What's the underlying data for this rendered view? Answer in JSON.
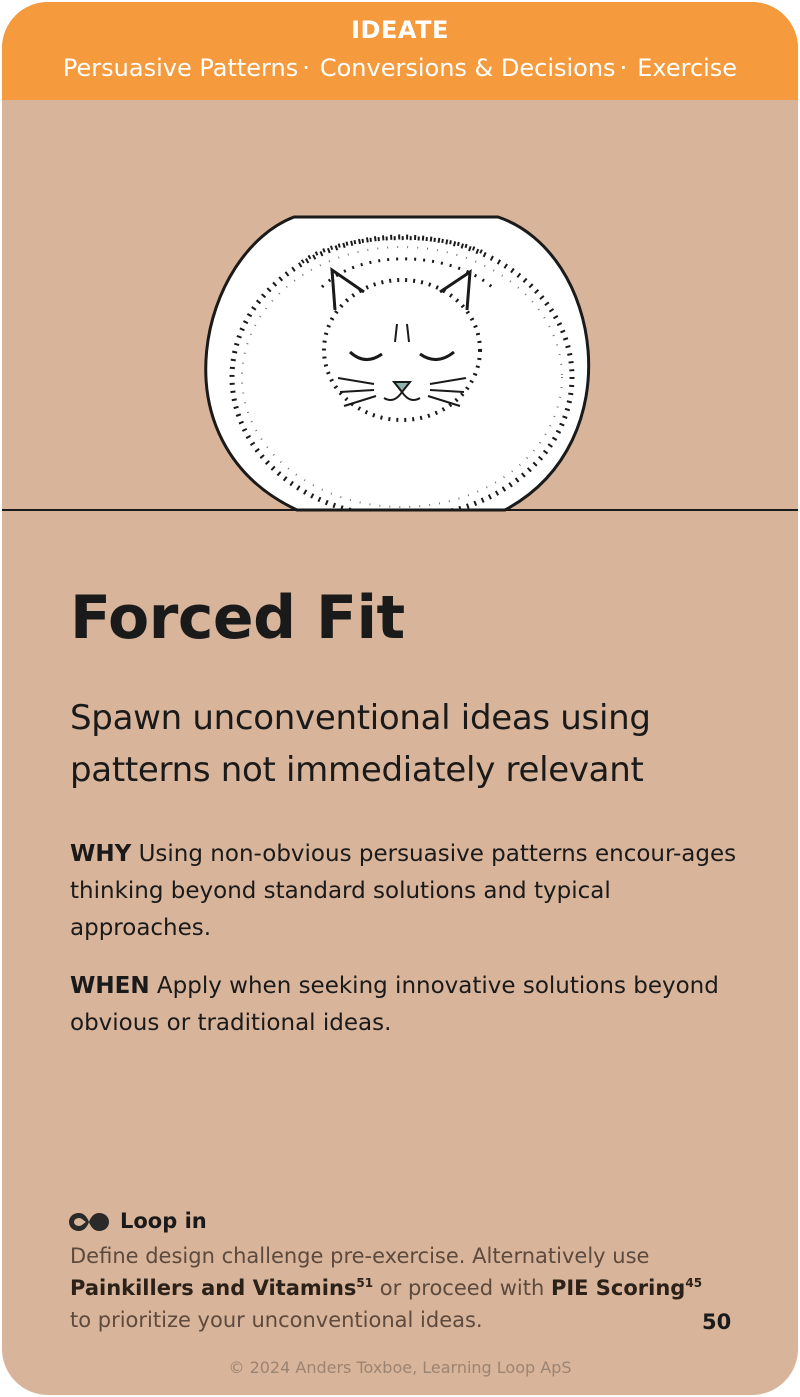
{
  "header": {
    "category": "IDEATE",
    "breadcrumb": [
      "Persuasive Patterns",
      "Conversions & Decisions",
      "Exercise"
    ],
    "separator": "·"
  },
  "illustration": {
    "icon": "cat-in-jar-icon"
  },
  "card": {
    "title": "Forced Fit",
    "subtitle": "Spawn unconventional ideas using patterns not immediately relevant",
    "why": {
      "label": "WHY",
      "text": "Using non-obvious persuasive patterns encour-ages thinking beyond standard solutions and typical approaches."
    },
    "when": {
      "label": "WHEN",
      "text": "Apply when seeking innovative solutions beyond obvious or traditional ideas."
    }
  },
  "loop_in": {
    "icon": "loop-icon",
    "heading": "Loop in",
    "text_before": "Define design challenge pre-exercise. Alternatively use",
    "ref1_name": "Painkillers and Vitamins",
    "ref1_num": "51",
    "text_middle": "or proceed with",
    "ref2_name": "PIE Scoring",
    "ref2_num": "45",
    "text_after": "to prioritize your unconventional ideas."
  },
  "page_number": "50",
  "copyright": "© 2024 Anders Toxboe, Learning Loop ApS",
  "colors": {
    "card_background": "#d8b49a",
    "header_background": "#f59a3d",
    "header_text": "#ffffff"
  }
}
